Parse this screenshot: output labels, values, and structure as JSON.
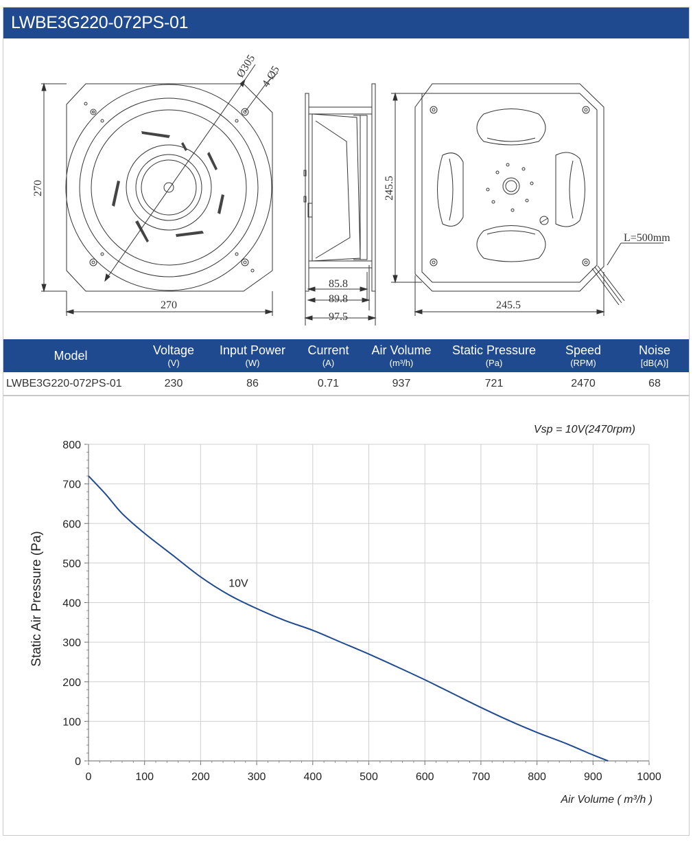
{
  "title": "LWBE3G220-072PS-01",
  "drawing": {
    "dia_label": "Ø305",
    "holes_label": "4-Ø5",
    "front_height": "270",
    "front_width": "270",
    "side_dims": [
      "85.8",
      "89.8",
      "97.5"
    ],
    "back_height": "245.5",
    "back_width": "245.5",
    "cable_label": "L=500mm"
  },
  "table": {
    "headers": [
      {
        "label": "Model",
        "unit": ""
      },
      {
        "label": "Voltage",
        "unit": "(V)"
      },
      {
        "label": "Input Power",
        "unit": "(W)"
      },
      {
        "label": "Current",
        "unit": "(A)"
      },
      {
        "label": "Air Volume",
        "unit": "(m³/h)"
      },
      {
        "label": "Static Pressure",
        "unit": "(Pa)"
      },
      {
        "label": "Speed",
        "unit": "(RPM)"
      },
      {
        "label": "Noise",
        "unit": "[dB(A)]"
      }
    ],
    "rows": [
      [
        "LWBE3G220-072PS-01",
        "230",
        "86",
        "0.71",
        "937",
        "721",
        "2470",
        "68"
      ]
    ]
  },
  "chart_data": {
    "type": "line",
    "annotation": "Vsp = 10V(2470rpm)",
    "xlabel": "Air Volume ( m³/h )",
    "ylabel": "Static Air Pressure  (Pa)",
    "xlim": [
      0,
      1000
    ],
    "ylim": [
      0,
      800
    ],
    "xticks": [
      0,
      100,
      200,
      300,
      400,
      500,
      600,
      700,
      800,
      900,
      1000
    ],
    "yticks": [
      0,
      100,
      200,
      300,
      400,
      500,
      600,
      700,
      800
    ],
    "grid": true,
    "series": [
      {
        "name": "10V",
        "color": "#1f4a8f",
        "points": [
          [
            0,
            720
          ],
          [
            30,
            675
          ],
          [
            60,
            625
          ],
          [
            100,
            575
          ],
          [
            150,
            520
          ],
          [
            200,
            465
          ],
          [
            250,
            420
          ],
          [
            300,
            385
          ],
          [
            350,
            355
          ],
          [
            400,
            330
          ],
          [
            450,
            300
          ],
          [
            500,
            270
          ],
          [
            550,
            238
          ],
          [
            600,
            205
          ],
          [
            650,
            170
          ],
          [
            700,
            135
          ],
          [
            750,
            102
          ],
          [
            800,
            72
          ],
          [
            850,
            45
          ],
          [
            900,
            15
          ],
          [
            927,
            0
          ]
        ]
      }
    ]
  },
  "colors": {
    "header": "#1f4a8f",
    "curve": "#1f4a8f",
    "grid": "#cfcfcf"
  }
}
